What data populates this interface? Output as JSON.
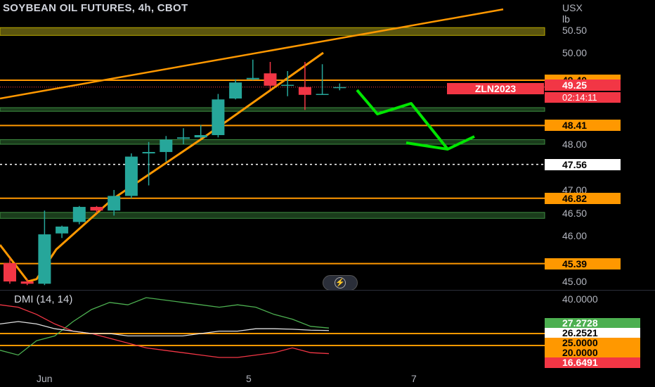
{
  "title": "SOYBEAN OIL FUTURES, 4h, CBOT",
  "unit_line1": "USX",
  "unit_line2": "lb",
  "symbol_tag": "ZLN2023",
  "countdown": "02:14:11",
  "indicator_label": "DMI (14, 14)",
  "colors": {
    "up": "#26a69a",
    "down": "#f23645",
    "orange": "#ff9800",
    "green_arrow": "#00e600",
    "zone_green": "#1e4620",
    "zone_yellow": "#6b6410"
  },
  "price_axis_ticks": [
    "50.50",
    "50.00",
    "48.00",
    "47.00",
    "46.50",
    "46.00",
    "45.00"
  ],
  "price_tags": [
    {
      "label": "49.40",
      "style": "orange"
    },
    {
      "label": "49.25",
      "style": "red"
    },
    {
      "label": "48.41",
      "style": "orange"
    },
    {
      "label": "47.56",
      "style": "white"
    },
    {
      "label": "46.82",
      "style": "orange"
    },
    {
      "label": "45.39",
      "style": "orange"
    }
  ],
  "indicator_axis_tick": "40.0000",
  "indicator_tags": [
    {
      "label": "27.2728",
      "style": "green"
    },
    {
      "label": "26.2521",
      "style": "whitebox"
    },
    {
      "label": "25.0000",
      "style": "orange"
    },
    {
      "label": "20.0000",
      "style": "orange"
    },
    {
      "label": "16.6491",
      "style": "red"
    }
  ],
  "x_labels": [
    "Jun",
    "5",
    "7"
  ],
  "chart_data": {
    "type": "candlestick",
    "title": "SOYBEAN OIL FUTURES, 4h, CBOT",
    "ylim": [
      44.95,
      50.85
    ],
    "candles": [
      {
        "o": 45.4,
        "h": 45.5,
        "l": 44.95,
        "c": 45.0
      },
      {
        "o": 45.0,
        "h": 45.05,
        "l": 44.92,
        "c": 44.95
      },
      {
        "o": 44.95,
        "h": 46.55,
        "l": 44.92,
        "c": 46.03
      },
      {
        "o": 46.05,
        "h": 46.22,
        "l": 45.95,
        "c": 46.2
      },
      {
        "o": 46.3,
        "h": 46.65,
        "l": 46.25,
        "c": 46.63
      },
      {
        "o": 46.63,
        "h": 46.65,
        "l": 46.5,
        "c": 46.55
      },
      {
        "o": 46.55,
        "h": 47.0,
        "l": 46.44,
        "c": 46.87
      },
      {
        "o": 46.87,
        "h": 47.8,
        "l": 46.82,
        "c": 47.73
      },
      {
        "o": 47.8,
        "h": 48.05,
        "l": 47.1,
        "c": 47.83
      },
      {
        "o": 47.83,
        "h": 48.18,
        "l": 47.62,
        "c": 48.1
      },
      {
        "o": 48.12,
        "h": 48.35,
        "l": 48.0,
        "c": 48.15
      },
      {
        "o": 48.15,
        "h": 48.42,
        "l": 48.13,
        "c": 48.2
      },
      {
        "o": 48.2,
        "h": 49.1,
        "l": 48.15,
        "c": 48.98
      },
      {
        "o": 49.0,
        "h": 49.42,
        "l": 48.98,
        "c": 49.35
      },
      {
        "o": 49.42,
        "h": 49.85,
        "l": 49.4,
        "c": 49.45
      },
      {
        "o": 49.55,
        "h": 49.8,
        "l": 49.2,
        "c": 49.28
      },
      {
        "o": 49.3,
        "h": 49.6,
        "l": 49.05,
        "c": 49.3
      },
      {
        "o": 49.25,
        "h": 49.8,
        "l": 48.75,
        "c": 49.08
      },
      {
        "o": 49.1,
        "h": 49.75,
        "l": 49.1,
        "c": 49.1
      },
      {
        "o": 49.25,
        "h": 49.33,
        "l": 49.18,
        "c": 49.25
      }
    ],
    "horizontal_levels": [
      49.4,
      48.41,
      46.82,
      45.39
    ],
    "last_price": 49.25,
    "dotted_level": 47.56,
    "zones": [
      {
        "from": 50.38,
        "to": 50.55,
        "color": "yellow"
      },
      {
        "from": 48.72,
        "to": 48.8,
        "color": "green"
      },
      {
        "from": 48.0,
        "to": 48.1,
        "color": "green"
      },
      {
        "from": 46.38,
        "to": 46.51,
        "color": "green"
      }
    ],
    "indicator": {
      "name": "DMI (14, 14)",
      "plus_di": [
        18,
        16,
        22,
        24,
        30,
        35,
        38,
        37,
        40,
        39,
        38,
        37,
        36,
        37,
        36,
        33,
        31,
        28,
        27.3
      ],
      "minus_di": [
        37,
        36,
        33,
        29,
        26,
        25,
        23,
        21,
        19,
        18,
        17,
        16,
        15,
        15,
        16,
        17,
        19,
        17,
        16.6
      ],
      "adx": [
        29,
        30,
        29,
        27,
        26,
        25,
        25,
        24,
        24,
        24,
        24,
        25,
        26,
        26,
        27,
        27,
        26.8,
        26.4,
        26.25
      ],
      "levels": [
        25.0,
        20.0
      ]
    }
  }
}
